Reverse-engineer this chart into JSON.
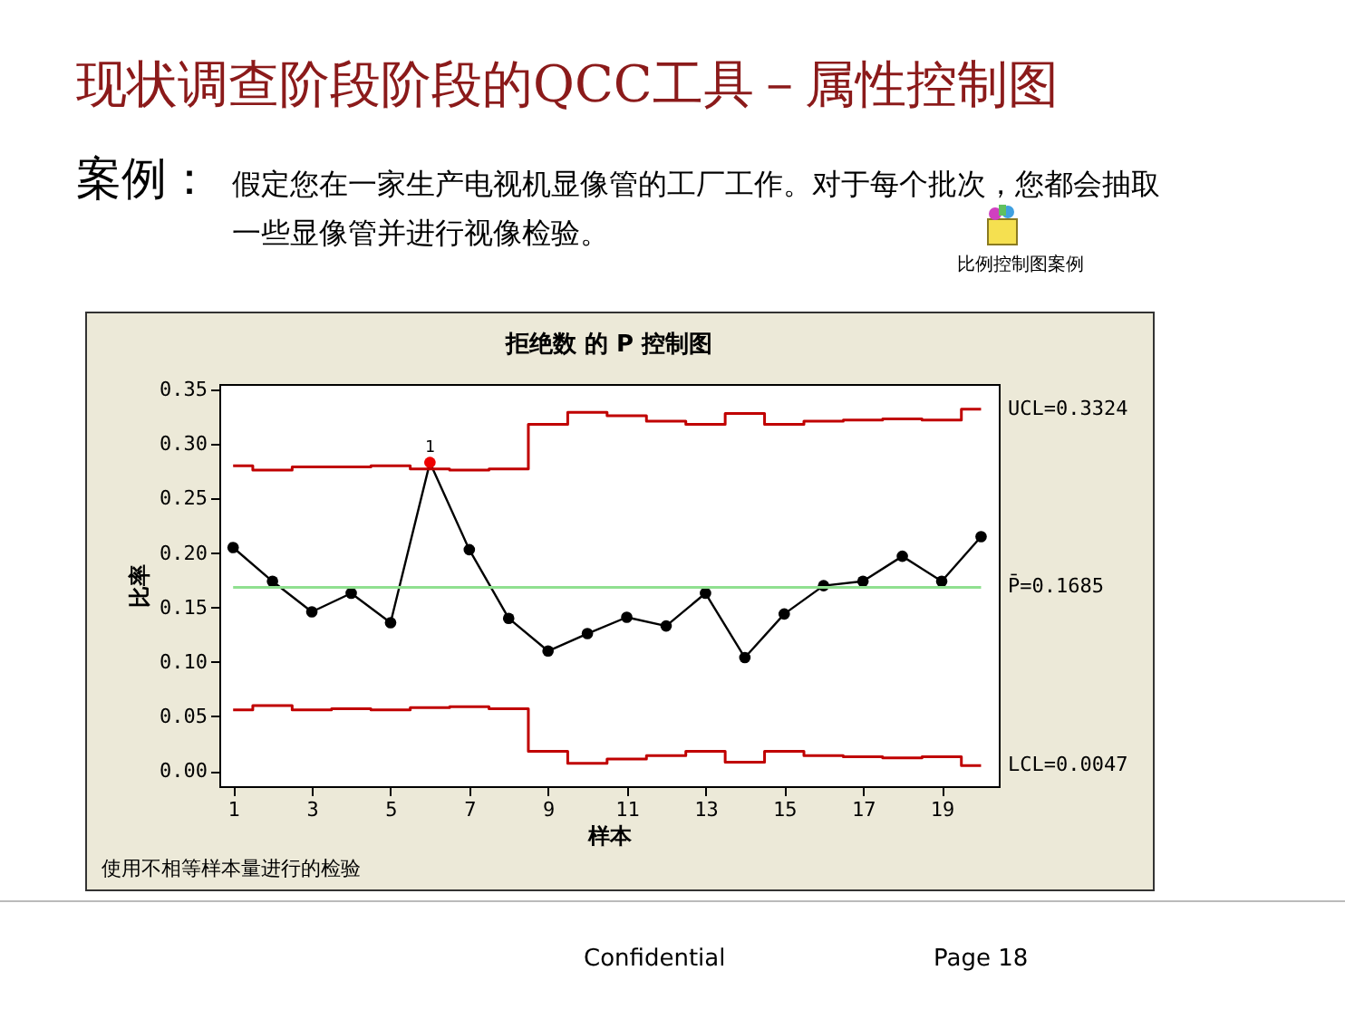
{
  "chart_data": {
    "type": "line",
    "title": "拒绝数 的 P 控制图",
    "xlabel": "样本",
    "ylabel": "比率",
    "annotations": [
      "现状调查阶段阶段的QCC工具－属性控制图",
      "案例：",
      "假定您在一家生产电视机显像管的工厂工作。对于每个批次，您都会抽取一些显像管并进行视像检验。",
      "比例控制图案例",
      "使用不相等样本量进行的检验",
      "Confidential",
      "Page 18",
      {
        "text": "1",
        "x": 6,
        "y": 0.283
      }
    ],
    "x": [
      1,
      2,
      3,
      4,
      5,
      6,
      7,
      8,
      9,
      10,
      11,
      12,
      13,
      14,
      15,
      16,
      17,
      18,
      19,
      20
    ],
    "series": [
      {
        "type": "line",
        "marker": "circle",
        "color": "#000000",
        "colors": [
          "#000000",
          "#000000",
          "#000000",
          "#000000",
          "#000000",
          "#ee0000",
          "#000000",
          "#000000",
          "#000000",
          "#000000",
          "#000000",
          "#000000",
          "#000000",
          "#000000",
          "#000000",
          "#000000",
          "#000000",
          "#000000",
          "#000000",
          "#000000"
        ],
        "values": [
          0.205,
          0.174,
          0.146,
          0.163,
          0.136,
          0.283,
          0.203,
          0.14,
          0.11,
          0.126,
          0.141,
          0.133,
          0.163,
          0.104,
          0.144,
          0.17,
          0.174,
          0.197,
          0.174,
          0.215
        ]
      },
      {
        "type": "step",
        "marker": "none",
        "name": "UCL=0.3324",
        "color": "#c00000",
        "values": [
          0.28,
          0.276,
          0.279,
          0.279,
          0.28,
          0.277,
          0.276,
          0.277,
          0.318,
          0.329,
          0.326,
          0.321,
          0.318,
          0.328,
          0.318,
          0.321,
          0.322,
          0.323,
          0.322,
          0.332
        ]
      },
      {
        "type": "step",
        "marker": "none",
        "name": "LCL=0.0047",
        "color": "#c00000",
        "values": [
          0.056,
          0.06,
          0.056,
          0.057,
          0.056,
          0.058,
          0.059,
          0.057,
          0.018,
          0.007,
          0.011,
          0.014,
          0.018,
          0.008,
          0.018,
          0.014,
          0.013,
          0.012,
          0.013,
          0.005
        ]
      }
    ],
    "ref_lines": [
      {
        "axis": "y",
        "value": 0.1685,
        "label": "P̄=0.1685",
        "color": "#90e090"
      }
    ],
    "xlim": [
      0.65,
      20.45
    ],
    "xticks": [
      1,
      3,
      5,
      7,
      9,
      11,
      13,
      15,
      17,
      19
    ],
    "ylim": [
      -0.014,
      0.355
    ],
    "yticks": [
      {
        "value": 0,
        "label": "0.00"
      },
      {
        "value": 0.05,
        "label": "0.05"
      },
      {
        "value": 0.1,
        "label": "0.10"
      },
      {
        "value": 0.15,
        "label": "0.15"
      },
      {
        "value": 0.2,
        "label": "0.20"
      },
      {
        "value": 0.25,
        "label": "0.25"
      },
      {
        "value": 0.3,
        "label": "0.30"
      },
      0.35
    ],
    "grid": false,
    "line_style": "solid"
  }
}
